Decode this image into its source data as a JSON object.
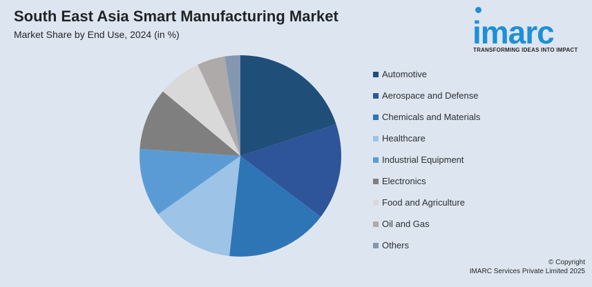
{
  "header": {
    "title": "South East Asia Smart Manufacturing Market",
    "subtitle": "Market Share by End Use, 2024 (in %)"
  },
  "logo": {
    "wordmark": "imarc",
    "tagline": "TRANSFORMING IDEAS INTO IMPACT",
    "color": "#1f8fd6"
  },
  "footer": {
    "copyright_line1": "© Copyright",
    "copyright_line2": "IMARC Services Private Limited 2025"
  },
  "chart_data": {
    "type": "pie",
    "title": "South East Asia Smart Manufacturing Market",
    "subtitle": "Market Share by End Use, 2024 (in %)",
    "legend_position": "right",
    "categories": [
      "Automotive",
      "Aerospace and Defense",
      "Chemicals and Materials",
      "Healthcare",
      "Industrial Equipment",
      "Electronics",
      "Food and Agriculture",
      "Oil and Gas",
      "Others"
    ],
    "values": [
      20,
      15.5,
      16.5,
      13.5,
      11,
      10,
      7,
      4.5,
      2.5
    ],
    "colors": [
      "#1f4e79",
      "#2e5599",
      "#2e75b6",
      "#9dc3e6",
      "#5b9bd5",
      "#7f7f7f",
      "#d9d9d9",
      "#aeaaaa",
      "#8497b0"
    ]
  }
}
